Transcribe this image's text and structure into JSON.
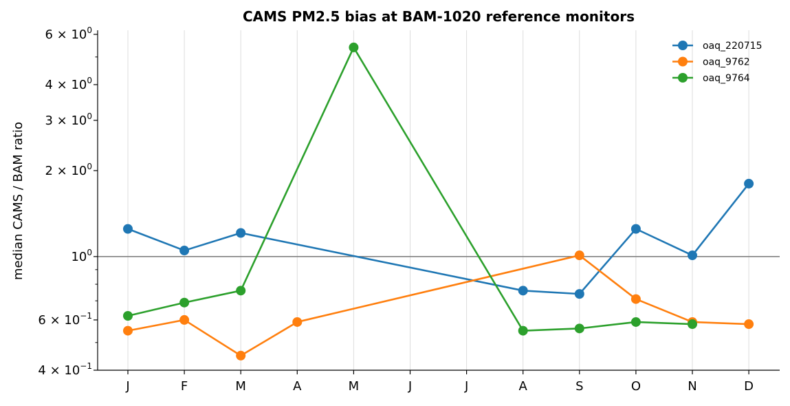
{
  "chart_data": {
    "type": "line",
    "title": "CAMS PM2.5 bias at BAM-1020 reference monitors",
    "xlabel": "",
    "ylabel": "median CAMS / BAM ratio",
    "yscale": "log",
    "ylim": [
      0.4,
      6.2
    ],
    "categories": [
      "J",
      "F",
      "M",
      "A",
      "M",
      "J",
      "J",
      "A",
      "S",
      "O",
      "N",
      "D"
    ],
    "y_major_ticks": [
      {
        "value": 0.4,
        "mantissa": "4",
        "exponent": "−1"
      },
      {
        "value": 0.6,
        "mantissa": "6",
        "exponent": "−1"
      },
      {
        "value": 1,
        "mantissa": "",
        "exponent": "0"
      },
      {
        "value": 2,
        "mantissa": "2",
        "exponent": "0"
      },
      {
        "value": 3,
        "mantissa": "3",
        "exponent": "0"
      },
      {
        "value": 4,
        "mantissa": "4",
        "exponent": "0"
      },
      {
        "value": 6,
        "mantissa": "6",
        "exponent": "0"
      }
    ],
    "y_minor_ticks": [
      0.5,
      0.7,
      0.8,
      0.9,
      5
    ],
    "reference_line": 1,
    "grid": "x-only",
    "legend_position": "top-right",
    "series": [
      {
        "name": "oaq_220715",
        "color": "#1f77b4",
        "values": [
          1.25,
          1.05,
          1.21,
          null,
          null,
          null,
          null,
          0.76,
          0.74,
          1.25,
          1.01,
          1.8
        ]
      },
      {
        "name": "oaq_9762",
        "color": "#ff7f0e",
        "values": [
          0.55,
          0.6,
          0.45,
          0.59,
          null,
          null,
          null,
          null,
          1.01,
          0.71,
          0.59,
          0.58
        ]
      },
      {
        "name": "oaq_9764",
        "color": "#2ca02c",
        "values": [
          0.62,
          0.69,
          0.76,
          null,
          5.4,
          null,
          null,
          0.55,
          0.56,
          0.59,
          0.58,
          null
        ]
      }
    ]
  }
}
